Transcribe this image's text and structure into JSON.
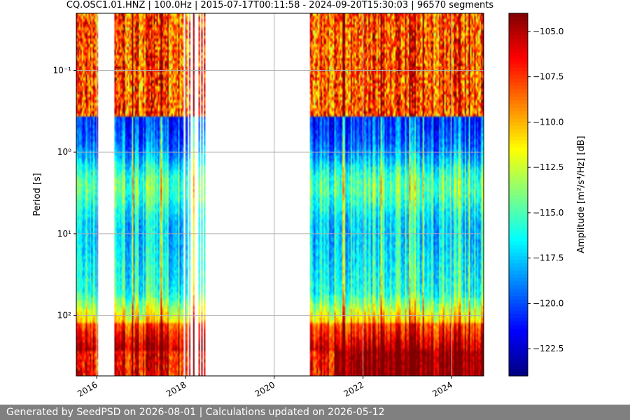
{
  "chart_data": {
    "type": "heatmap",
    "title": "CQ.OSC1.01.HNZ | 100.0Hz | 2015-07-17T00:11:58 - 2024-09-20T15:30:03 | 96570 segments",
    "ylabel": "Period [s]",
    "colorbar_label": "Amplitude [m²/s⁴/Hz] [dB]",
    "colormap": "jet",
    "x_axis": {
      "type": "date",
      "range": [
        "2015-07-17",
        "2024-09-20"
      ],
      "ticks": [
        "2016",
        "2018",
        "2020",
        "2022",
        "2024"
      ]
    },
    "y_axis": {
      "scale": "log",
      "inverted": true,
      "range": [
        0.02,
        550
      ],
      "ticks": [
        {
          "value": 0.1,
          "label": "10⁻¹"
        },
        {
          "value": 1,
          "label": "10⁰"
        },
        {
          "value": 10,
          "label": "10¹"
        },
        {
          "value": 100,
          "label": "10²"
        }
      ]
    },
    "color_range": [
      -124,
      -104
    ],
    "colorbar_ticks": [
      "−105.0",
      "−107.5",
      "−110.0",
      "−112.5",
      "−115.0",
      "−117.5",
      "−120.0",
      "−122.5"
    ],
    "colorbar_tick_values": [
      -105,
      -107.5,
      -110,
      -112.5,
      -115,
      -117.5,
      -120,
      -122.5
    ],
    "grid": true,
    "data_gaps": [
      [
        "2016-01-10",
        "2016-05-20"
      ],
      [
        "2018-06-10",
        "2020-10-25"
      ]
    ]
  },
  "footer": {
    "text": "Generated by SeedPSD on 2026-08-01 | Calculations updated on 2026-05-12"
  },
  "colors": {
    "grid": "#b0b0b0",
    "footer_bg": "#808080",
    "footer_text": "#ffffff"
  }
}
